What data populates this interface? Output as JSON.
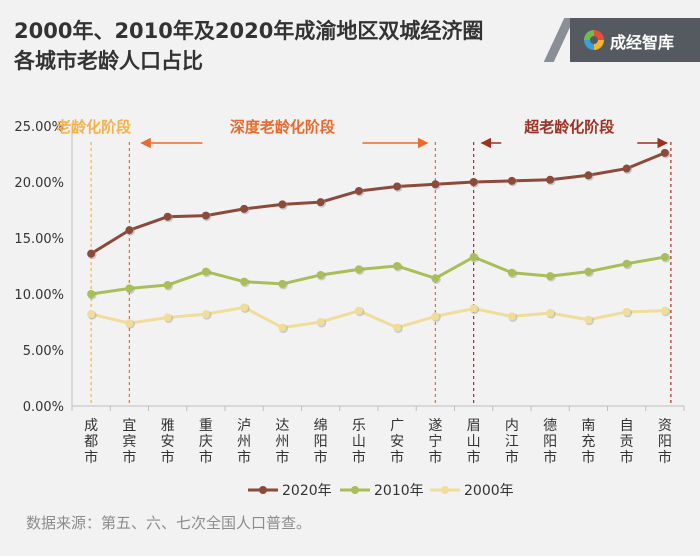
{
  "header": {
    "title_line1": "2000年、2010年及2020年成渝地区双城经济圈",
    "title_line2": "各城市老龄人口占比",
    "brand": "成经智库"
  },
  "source": "数据来源：第五、六、七次全国人口普查。",
  "colors": {
    "series_2020": "#8b4a3a",
    "series_2010": "#a8be57",
    "series_2000": "#f0dd9a",
    "aging": "#f3b24a",
    "deep": "#e96a2c",
    "super": "#9a3325"
  },
  "chart_data": {
    "type": "line",
    "categories": [
      "成都市",
      "宜宾市",
      "雅安市",
      "重庆市",
      "泸州市",
      "达州市",
      "绵阳市",
      "乐山市",
      "广安市",
      "遂宁市",
      "眉山市",
      "内江市",
      "德阳市",
      "南充市",
      "自贡市",
      "资阳市"
    ],
    "series": [
      {
        "name": "2020年",
        "values": [
          13.6,
          15.7,
          16.9,
          17.0,
          17.6,
          18.0,
          18.2,
          19.2,
          19.6,
          19.8,
          20.0,
          20.1,
          20.2,
          20.6,
          21.2,
          22.6
        ]
      },
      {
        "name": "2010年",
        "values": [
          10.0,
          10.5,
          10.8,
          12.0,
          11.1,
          10.9,
          11.7,
          12.2,
          12.5,
          11.4,
          13.3,
          11.9,
          11.6,
          12.0,
          12.7,
          13.3
        ]
      },
      {
        "name": "2000年",
        "values": [
          8.2,
          7.4,
          7.9,
          8.2,
          8.8,
          7.0,
          7.5,
          8.5,
          7.0,
          8.0,
          8.7,
          8.0,
          8.3,
          7.7,
          8.4,
          8.5
        ]
      }
    ],
    "ylim": [
      0,
      25
    ],
    "yticks": [
      "0.00%",
      "5.00%",
      "10.00%",
      "15.00%",
      "20.00%",
      "25.00%"
    ],
    "legend_position": "bottom",
    "stages": [
      {
        "label": "老龄化阶段",
        "from_index": 0,
        "to_index": 0
      },
      {
        "label": "深度老龄化阶段",
        "from_index": 1,
        "to_index": 9
      },
      {
        "label": "超老龄化阶段",
        "from_index": 10,
        "to_index": 15
      }
    ]
  }
}
